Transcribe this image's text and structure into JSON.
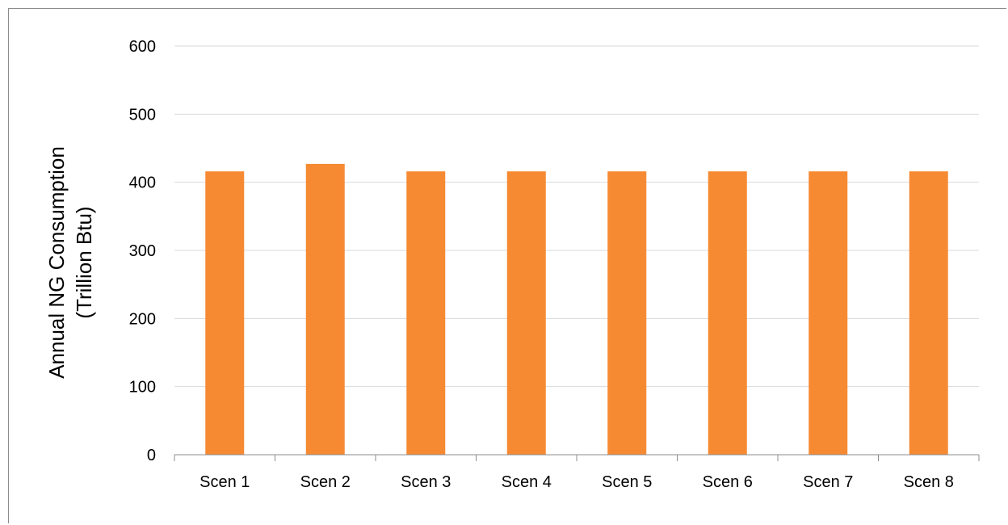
{
  "chart_data": {
    "type": "bar",
    "categories": [
      "Scen 1",
      "Scen 2",
      "Scen 3",
      "Scen 4",
      "Scen 5",
      "Scen 6",
      "Scen 7",
      "Scen 8"
    ],
    "values": [
      416,
      427,
      416,
      416,
      416,
      416,
      416,
      416
    ],
    "title": "",
    "xlabel": "",
    "ylabel": [
      "Annual NG Consumption",
      "(Trillion Btu)"
    ],
    "ylim": [
      0,
      600
    ],
    "yticks": [
      0,
      100,
      200,
      300,
      400,
      500,
      600
    ],
    "grid": true,
    "legend": "none",
    "colors": {
      "bar": "#f68a33",
      "grid": "#d9d9d9",
      "axis": "#8c8c8c",
      "frame": "#8c8c8c"
    }
  }
}
